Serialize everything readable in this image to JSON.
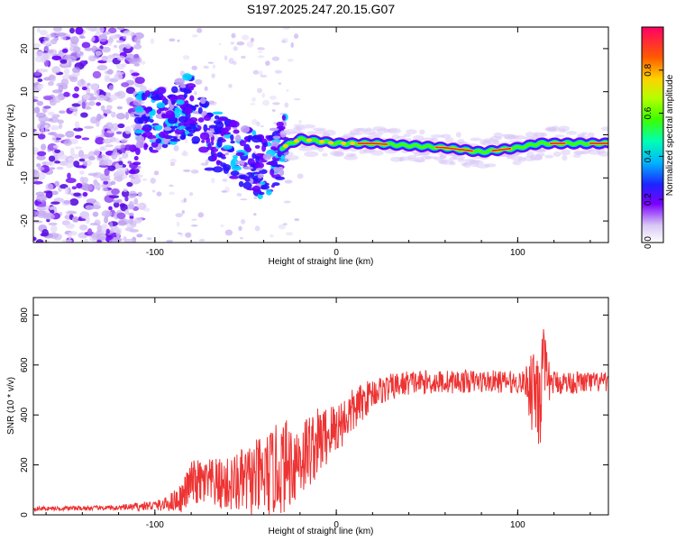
{
  "title": "S197.2025.247.20.15.G07",
  "chart_data": [
    {
      "type": "heatmap",
      "name": "spectrogram",
      "xlabel": "Height of straight line (km)",
      "ylabel": "Frequency (Hz)",
      "xlim": [
        -167,
        150
      ],
      "ylim": [
        -25,
        25
      ],
      "xticks": [
        -100,
        0,
        100
      ],
      "yticks": [
        -20,
        -10,
        0,
        10,
        20
      ],
      "colorbar": {
        "label": "Normalized spectral amplitude",
        "range": [
          0,
          1
        ],
        "ticks": [
          0.0,
          0.2,
          0.4,
          0.6,
          0.8
        ],
        "tick_labels": [
          "0.0",
          "0.2",
          "0.4",
          "0.6",
          "0.8"
        ]
      },
      "ridge": [
        {
          "x": -100,
          "y": 3
        },
        {
          "x": -80,
          "y": 7
        },
        {
          "x": -70,
          "y": -1
        },
        {
          "x": -50,
          "y": -5
        },
        {
          "x": -40,
          "y": -8
        },
        {
          "x": -30,
          "y": -3
        },
        {
          "x": -20,
          "y": -1
        },
        {
          "x": 0,
          "y": -2
        },
        {
          "x": 20,
          "y": -2
        },
        {
          "x": 60,
          "y": -3
        },
        {
          "x": 80,
          "y": -4
        },
        {
          "x": 100,
          "y": -3
        },
        {
          "x": 112,
          "y": -2
        },
        {
          "x": 150,
          "y": -2
        }
      ]
    },
    {
      "type": "line",
      "name": "snr",
      "xlabel": "Height of straight line (km)",
      "ylabel": "SNR (10 * v/v)",
      "xlim": [
        -167,
        150
      ],
      "ylim": [
        0,
        870
      ],
      "xticks": [
        -100,
        0,
        100
      ],
      "yticks": [
        0,
        200,
        400,
        600,
        800
      ],
      "color": "#ee3333",
      "envelope": [
        {
          "x": -167,
          "base": 25,
          "amp": 8
        },
        {
          "x": -120,
          "base": 28,
          "amp": 10
        },
        {
          "x": -95,
          "base": 40,
          "amp": 25
        },
        {
          "x": -85,
          "base": 70,
          "amp": 60
        },
        {
          "x": -80,
          "base": 130,
          "amp": 90
        },
        {
          "x": -60,
          "base": 120,
          "amp": 110
        },
        {
          "x": -40,
          "base": 150,
          "amp": 170
        },
        {
          "x": -30,
          "base": 190,
          "amp": 190
        },
        {
          "x": -20,
          "base": 230,
          "amp": 170
        },
        {
          "x": -10,
          "base": 290,
          "amp": 140
        },
        {
          "x": 0,
          "base": 350,
          "amp": 110
        },
        {
          "x": 10,
          "base": 420,
          "amp": 90
        },
        {
          "x": 20,
          "base": 490,
          "amp": 60
        },
        {
          "x": 40,
          "base": 530,
          "amp": 50
        },
        {
          "x": 80,
          "base": 535,
          "amp": 45
        },
        {
          "x": 104,
          "base": 530,
          "amp": 45
        },
        {
          "x": 108,
          "base": 520,
          "amp": 200
        },
        {
          "x": 113,
          "base": 520,
          "amp": 300
        },
        {
          "x": 118,
          "base": 530,
          "amp": 50
        },
        {
          "x": 150,
          "base": 530,
          "amp": 40
        }
      ]
    }
  ]
}
